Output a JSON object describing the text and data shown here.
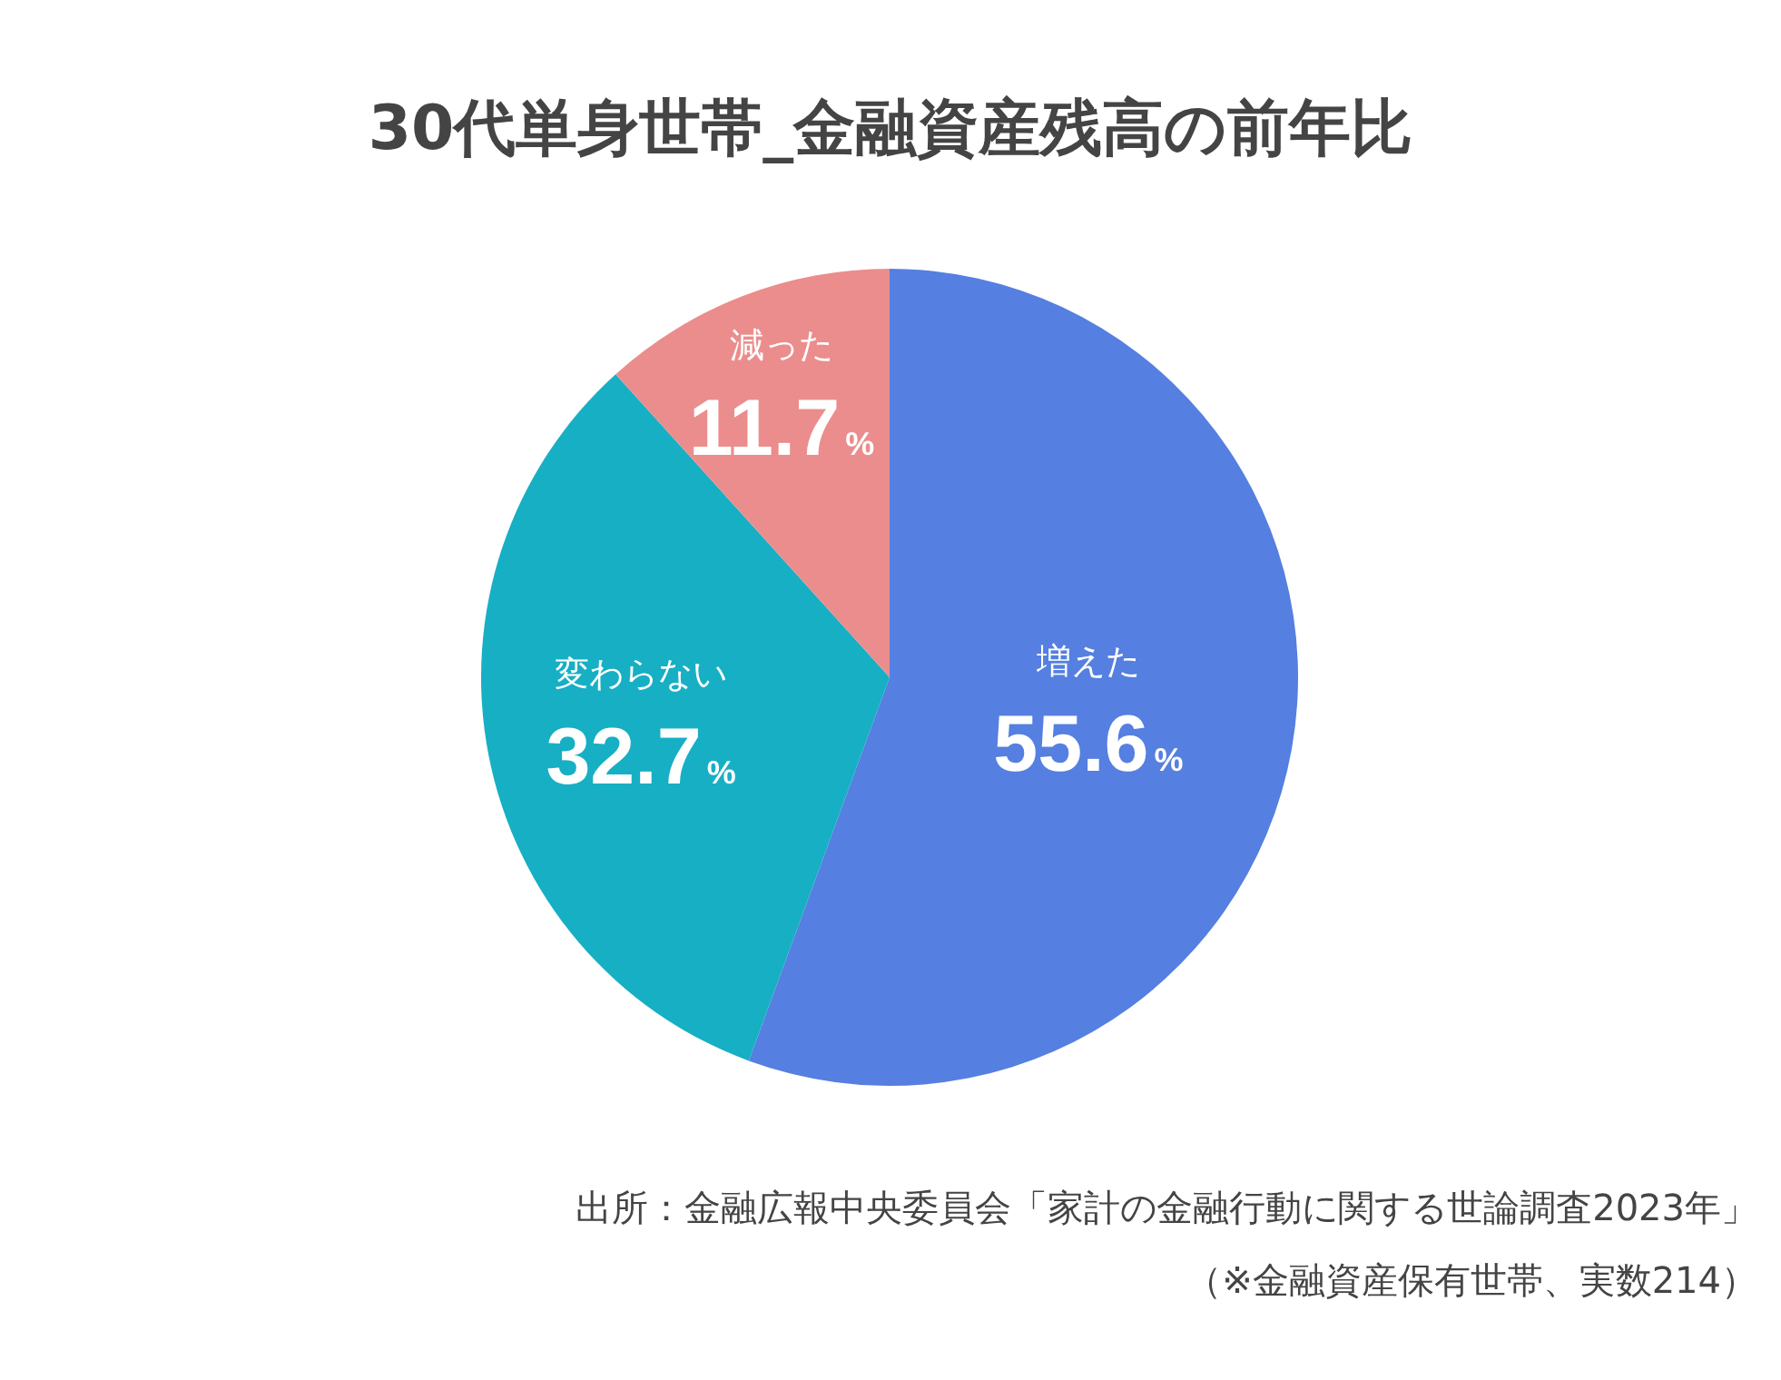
{
  "chart_data": {
    "type": "pie",
    "title": "30代単身世帯_金融資産残高の前年比",
    "categories": [
      "増えた",
      "変わらない",
      "減った"
    ],
    "values": [
      55.6,
      32.7,
      11.7
    ],
    "colors": [
      "#557fe0",
      "#17afc4",
      "#eb8d8d"
    ],
    "value_labels": [
      "55.6%",
      "32.7%",
      "11.7%"
    ],
    "annotations": [
      "出所：金融広報中央委員会「家計の金融行動に関する世論調査2023年」",
      "（※金融資産保有世帯、実数214）"
    ]
  }
}
